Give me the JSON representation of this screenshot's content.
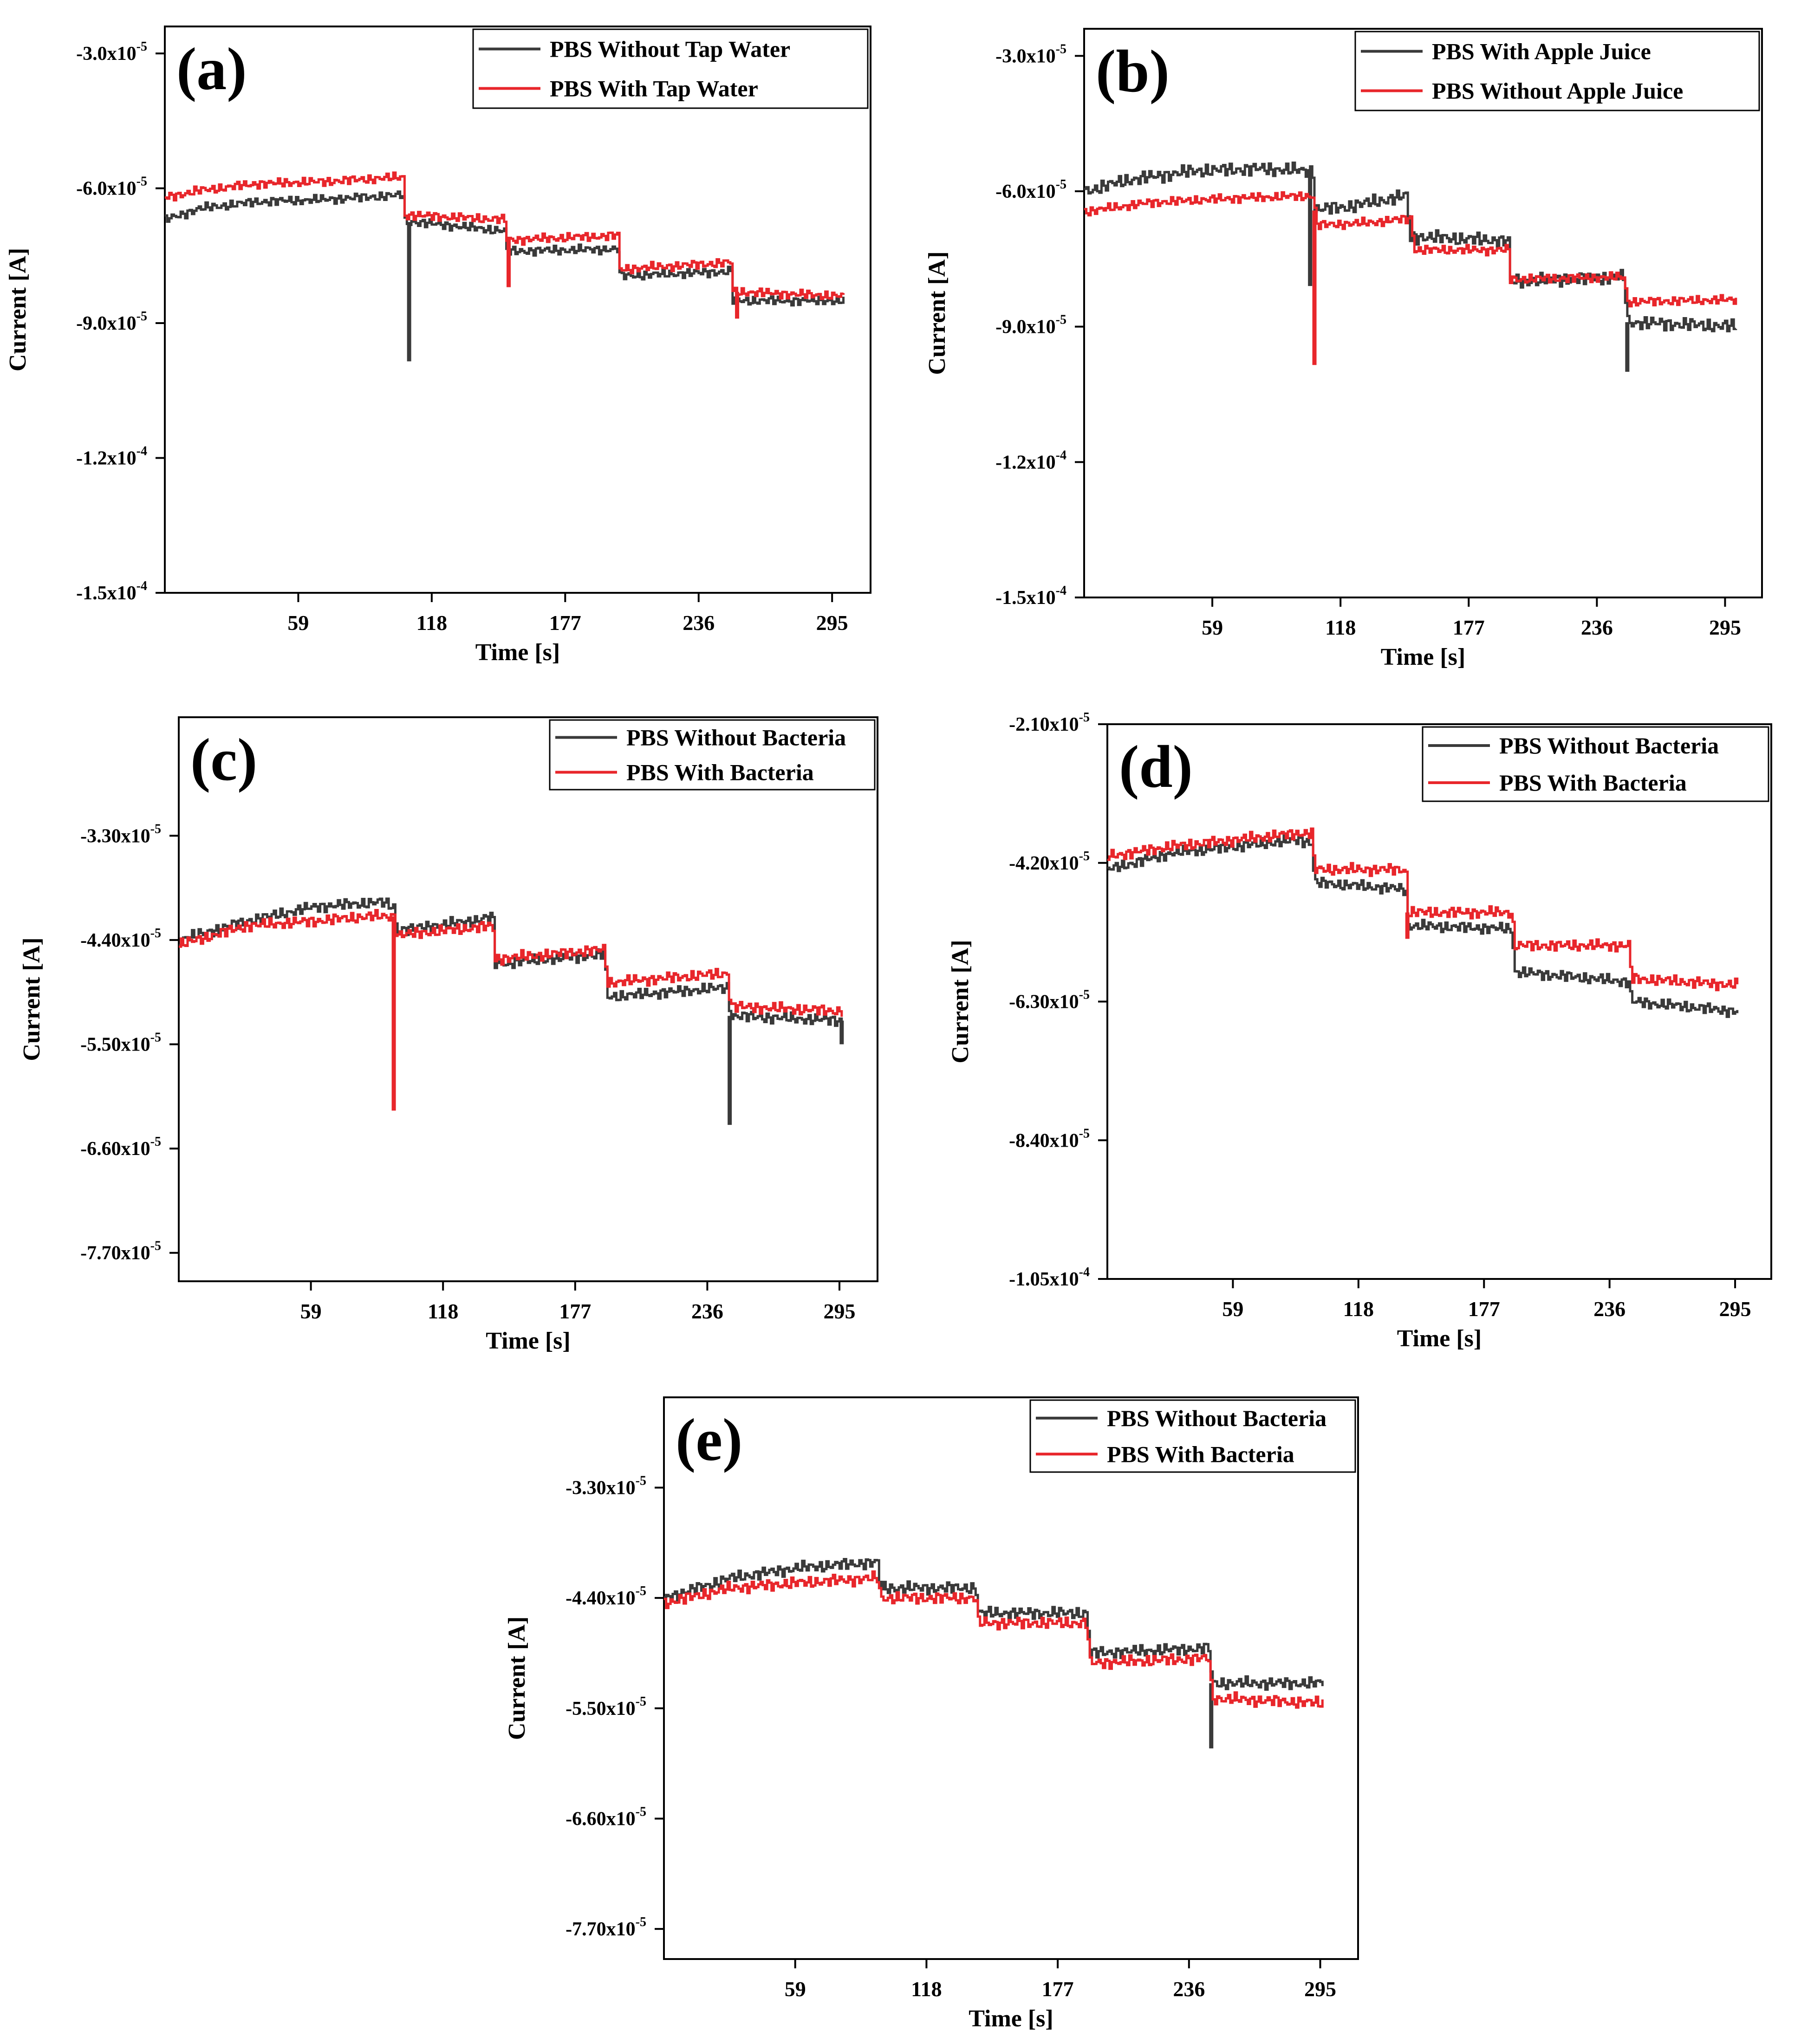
{
  "figure": {
    "panels": [
      "a",
      "b",
      "c",
      "d",
      "e"
    ]
  },
  "colors": {
    "black_series": "#3a3a3a",
    "red_series": "#e8262b",
    "axis": "#000000",
    "background": "#ffffff"
  },
  "chart_data": [
    {
      "id": "a",
      "type": "line",
      "panel_label": "(a)",
      "title": "",
      "xlabel": "Time [s]",
      "ylabel": "Current [A]",
      "xlim": [
        0,
        312
      ],
      "ylim": [
        -0.00015,
        -2.4e-05
      ],
      "x_ticks": [
        59,
        118,
        177,
        236,
        295
      ],
      "x_tick_labels": [
        "59",
        "118",
        "177",
        "236",
        "295"
      ],
      "y_ticks": [
        -3e-05,
        -6e-05,
        -9e-05,
        -0.00012,
        -0.00015
      ],
      "y_tick_labels": [
        {
          "mant": "-3.0x10",
          "exp": "-5"
        },
        {
          "mant": "-6.0x10",
          "exp": "-5"
        },
        {
          "mant": "-9.0x10",
          "exp": "-5"
        },
        {
          "mant": "-1.2x10",
          "exp": "-4"
        },
        {
          "mant": "-1.5x10",
          "exp": "-4"
        }
      ],
      "legend_position": "top-right",
      "series": [
        {
          "name": "PBS Without Tap Water",
          "color": "black",
          "noise": 6e-07,
          "phase": 1,
          "points": [
            [
              0,
              -6.7e-05
            ],
            [
              15,
              -6.45e-05
            ],
            [
              40,
              -6.3e-05
            ],
            [
              70,
              -6.25e-05
            ],
            [
              105,
              -6.15e-05
            ],
            [
              106,
              -6.75e-05
            ],
            [
              110,
              -6.75e-05
            ],
            [
              150,
              -6.95e-05
            ],
            [
              151,
              -7.4e-05
            ],
            [
              200,
              -7.35e-05
            ],
            [
              201,
              -7.95e-05
            ],
            [
              250,
              -7.85e-05
            ],
            [
              251,
              -8.5e-05
            ],
            [
              300,
              -8.5e-05
            ]
          ],
          "spikes": [
            [
              108,
              -9.85e-05
            ]
          ]
        },
        {
          "name": "PBS With Tap Water",
          "color": "red",
          "noise": 6e-07,
          "phase": 2,
          "points": [
            [
              0,
              -6.2e-05
            ],
            [
              15,
              -6.05e-05
            ],
            [
              40,
              -5.9e-05
            ],
            [
              70,
              -5.85e-05
            ],
            [
              105,
              -5.75e-05
            ],
            [
              106,
              -6.6e-05
            ],
            [
              110,
              -6.6e-05
            ],
            [
              150,
              -6.7e-05
            ],
            [
              151,
              -7.15e-05
            ],
            [
              200,
              -7.05e-05
            ],
            [
              201,
              -7.8e-05
            ],
            [
              250,
              -7.65e-05
            ],
            [
              251,
              -8.3e-05
            ],
            [
              300,
              -8.4e-05
            ]
          ],
          "spikes": [
            [
              152,
              -8.2e-05
            ],
            [
              253,
              -8.9e-05
            ]
          ]
        }
      ]
    },
    {
      "id": "b",
      "type": "line",
      "panel_label": "(b)",
      "title": "",
      "xlabel": "Time [s]",
      "ylabel": "Current [A]",
      "xlim": [
        0,
        312
      ],
      "ylim": [
        -0.00015,
        -2.4e-05
      ],
      "x_ticks": [
        59,
        118,
        177,
        236,
        295
      ],
      "x_tick_labels": [
        "59",
        "118",
        "177",
        "236",
        "295"
      ],
      "y_ticks": [
        -3e-05,
        -6e-05,
        -9e-05,
        -0.00012,
        -0.00015
      ],
      "y_tick_labels": [
        {
          "mant": "-3.0x10",
          "exp": "-5"
        },
        {
          "mant": "-6.0x10",
          "exp": "-5"
        },
        {
          "mant": "-9.0x10",
          "exp": "-5"
        },
        {
          "mant": "-1.2x10",
          "exp": "-4"
        },
        {
          "mant": "-1.5x10",
          "exp": "-4"
        }
      ],
      "legend_position": "top-right",
      "series": [
        {
          "name": "PBS With Apple Juice",
          "color": "black",
          "noise": 9e-07,
          "phase": 3,
          "points": [
            [
              0,
              -6e-05
            ],
            [
              20,
              -5.75e-05
            ],
            [
              50,
              -5.55e-05
            ],
            [
              80,
              -5.5e-05
            ],
            [
              105,
              -5.55e-05
            ],
            [
              106,
              -6.4e-05
            ],
            [
              120,
              -6.35e-05
            ],
            [
              148,
              -6.1e-05
            ],
            [
              150,
              -7e-05
            ],
            [
              195,
              -7.1e-05
            ],
            [
              196,
              -8e-05
            ],
            [
              248,
              -7.9e-05
            ],
            [
              250,
              -8.9e-05
            ],
            [
              300,
              -9e-05
            ]
          ],
          "spikes": [
            [
              104,
              -8.1e-05
            ],
            [
              250,
              -0.0001
            ]
          ]
        },
        {
          "name": "PBS Without Apple Juice",
          "color": "red",
          "noise": 6e-07,
          "phase": 4,
          "points": [
            [
              0,
              -6.45e-05
            ],
            [
              30,
              -6.25e-05
            ],
            [
              70,
              -6.15e-05
            ],
            [
              105,
              -6.1e-05
            ],
            [
              107,
              -6.75e-05
            ],
            [
              130,
              -6.7e-05
            ],
            [
              150,
              -6.6e-05
            ],
            [
              152,
              -7.3e-05
            ],
            [
              195,
              -7.3e-05
            ],
            [
              196,
              -7.95e-05
            ],
            [
              248,
              -7.9e-05
            ],
            [
              250,
              -8.45e-05
            ],
            [
              300,
              -8.4e-05
            ]
          ],
          "spikes": [
            [
              106,
              -9.85e-05
            ]
          ]
        }
      ]
    },
    {
      "id": "c",
      "type": "line",
      "panel_label": "(c)",
      "title": "",
      "xlabel": "Time [s]",
      "ylabel": "Current [A]",
      "xlim": [
        0,
        312
      ],
      "ylim": [
        -8e-05,
        -2.05e-05
      ],
      "x_ticks": [
        59,
        118,
        177,
        236,
        295
      ],
      "x_tick_labels": [
        "59",
        "118",
        "177",
        "236",
        "295"
      ],
      "y_ticks": [
        -3.3e-05,
        -4.4e-05,
        -5.5e-05,
        -6.6e-05,
        -7.7e-05
      ],
      "y_tick_labels": [
        {
          "mant": "-3.30x10",
          "exp": "-5"
        },
        {
          "mant": "-4.40x10",
          "exp": "-5"
        },
        {
          "mant": "-5.50x10",
          "exp": "-5"
        },
        {
          "mant": "-6.60x10",
          "exp": "-5"
        },
        {
          "mant": "-7.70x10",
          "exp": "-5"
        }
      ],
      "legend_position": "top-right",
      "series": [
        {
          "name": "PBS Without Bacteria",
          "color": "black",
          "noise": 3.5e-07,
          "phase": 5,
          "points": [
            [
              0,
              -4.4e-05
            ],
            [
              30,
              -4.2e-05
            ],
            [
              60,
              -4.05e-05
            ],
            [
              90,
              -4e-05
            ],
            [
              96,
              -4.05e-05
            ],
            [
              97,
              -4.3e-05
            ],
            [
              130,
              -4.2e-05
            ],
            [
              140,
              -4.15e-05
            ],
            [
              141,
              -4.65e-05
            ],
            [
              190,
              -4.55e-05
            ],
            [
              191,
              -5e-05
            ],
            [
              245,
              -4.9e-05
            ],
            [
              246,
              -5.2e-05
            ],
            [
              296,
              -5.25e-05
            ]
          ],
          "spikes": [
            [
              246,
              -6.35e-05
            ],
            [
              296,
              -5.5e-05
            ]
          ]
        },
        {
          "name": "PBS With Bacteria",
          "color": "red",
          "noise": 3.5e-07,
          "phase": 6,
          "points": [
            [
              0,
              -4.45e-05
            ],
            [
              30,
              -4.25e-05
            ],
            [
              60,
              -4.2e-05
            ],
            [
              85,
              -4.15e-05
            ],
            [
              96,
              -4.15e-05
            ],
            [
              97,
              -4.35e-05
            ],
            [
              140,
              -4.25e-05
            ],
            [
              141,
              -4.6e-05
            ],
            [
              190,
              -4.5e-05
            ],
            [
              191,
              -4.85e-05
            ],
            [
              245,
              -4.75e-05
            ],
            [
              246,
              -5.1e-05
            ],
            [
              296,
              -5.15e-05
            ]
          ],
          "spikes": [
            [
              96,
              -6.2e-05
            ]
          ]
        }
      ]
    },
    {
      "id": "d",
      "type": "line",
      "panel_label": "(d)",
      "title": "",
      "xlabel": "Time [s]",
      "ylabel": "Current [A]",
      "xlim": [
        0,
        312
      ],
      "ylim": [
        -0.000105,
        -2.1e-05
      ],
      "x_ticks": [
        59,
        118,
        177,
        236,
        295
      ],
      "x_tick_labels": [
        "59",
        "118",
        "177",
        "236",
        "295"
      ],
      "y_ticks": [
        -2.1e-05,
        -4.2e-05,
        -6.3e-05,
        -8.4e-05,
        -0.000105
      ],
      "y_tick_labels": [
        {
          "mant": "-2.10x10",
          "exp": "-5"
        },
        {
          "mant": "-4.20x10",
          "exp": "-5"
        },
        {
          "mant": "-6.30x10",
          "exp": "-5"
        },
        {
          "mant": "-8.40x10",
          "exp": "-5"
        },
        {
          "mant": "-1.05x10",
          "exp": "-4"
        }
      ],
      "legend_position": "top-right",
      "series": [
        {
          "name": "PBS Without Bacteria",
          "color": "black",
          "noise": 5e-07,
          "phase": 7,
          "points": [
            [
              0,
              -4.3e-05
            ],
            [
              30,
              -4.05e-05
            ],
            [
              60,
              -3.95e-05
            ],
            [
              90,
              -3.85e-05
            ],
            [
              96,
              -3.9e-05
            ],
            [
              97,
              -4.5e-05
            ],
            [
              140,
              -4.6e-05
            ],
            [
              141,
              -5.15e-05
            ],
            [
              190,
              -5.2e-05
            ],
            [
              191,
              -5.85e-05
            ],
            [
              245,
              -6e-05
            ],
            [
              246,
              -6.3e-05
            ],
            [
              296,
              -6.45e-05
            ]
          ],
          "spikes": []
        },
        {
          "name": "PBS With Bacteria",
          "color": "red",
          "noise": 5e-07,
          "phase": 8,
          "points": [
            [
              0,
              -4.1e-05
            ],
            [
              30,
              -3.95e-05
            ],
            [
              60,
              -3.85e-05
            ],
            [
              90,
              -3.75e-05
            ],
            [
              96,
              -3.75e-05
            ],
            [
              97,
              -4.3e-05
            ],
            [
              140,
              -4.3e-05
            ],
            [
              141,
              -4.95e-05
            ],
            [
              190,
              -4.95e-05
            ],
            [
              191,
              -5.45e-05
            ],
            [
              245,
              -5.45e-05
            ],
            [
              246,
              -5.95e-05
            ],
            [
              296,
              -6.05e-05
            ]
          ],
          "spikes": [
            [
              141,
              -5.35e-05
            ]
          ]
        }
      ]
    },
    {
      "id": "e",
      "type": "line",
      "panel_label": "(e)",
      "title": "",
      "xlabel": "Time [s]",
      "ylabel": "Current [A]",
      "xlim": [
        0,
        312
      ],
      "ylim": [
        -8e-05,
        -2.4e-05
      ],
      "x_ticks": [
        59,
        118,
        177,
        236,
        295
      ],
      "x_tick_labels": [
        "59",
        "118",
        "177",
        "236",
        "295"
      ],
      "y_ticks": [
        -3.3e-05,
        -4.4e-05,
        -5.5e-05,
        -6.6e-05,
        -7.7e-05
      ],
      "y_tick_labels": [
        {
          "mant": "-3.30x10",
          "exp": "-5"
        },
        {
          "mant": "-4.40x10",
          "exp": "-5"
        },
        {
          "mant": "-5.50x10",
          "exp": "-5"
        },
        {
          "mant": "-6.60x10",
          "exp": "-5"
        },
        {
          "mant": "-7.70x10",
          "exp": "-5"
        }
      ],
      "legend_position": "top-right",
      "series": [
        {
          "name": "PBS Without Bacteria",
          "color": "black",
          "noise": 3.5e-07,
          "phase": 9,
          "points": [
            [
              0,
              -4.4e-05
            ],
            [
              30,
              -4.2e-05
            ],
            [
              60,
              -4.1e-05
            ],
            [
              90,
              -4.05e-05
            ],
            [
              96,
              -4.05e-05
            ],
            [
              97,
              -4.3e-05
            ],
            [
              140,
              -4.3e-05
            ],
            [
              141,
              -4.55e-05
            ],
            [
              190,
              -4.55e-05
            ],
            [
              191,
              -4.95e-05
            ],
            [
              245,
              -4.9e-05
            ],
            [
              246,
              -5.25e-05
            ],
            [
              296,
              -5.25e-05
            ]
          ],
          "spikes": [
            [
              246,
              -5.9e-05
            ]
          ]
        },
        {
          "name": "PBS With Bacteria",
          "color": "red",
          "noise": 3.5e-07,
          "phase": 10,
          "points": [
            [
              0,
              -4.45e-05
            ],
            [
              30,
              -4.3e-05
            ],
            [
              60,
              -4.25e-05
            ],
            [
              96,
              -4.2e-05
            ],
            [
              97,
              -4.4e-05
            ],
            [
              140,
              -4.4e-05
            ],
            [
              141,
              -4.65e-05
            ],
            [
              190,
              -4.65e-05
            ],
            [
              191,
              -5.05e-05
            ],
            [
              245,
              -5e-05
            ],
            [
              246,
              -5.4e-05
            ],
            [
              296,
              -5.45e-05
            ]
          ],
          "spikes": []
        }
      ]
    }
  ]
}
